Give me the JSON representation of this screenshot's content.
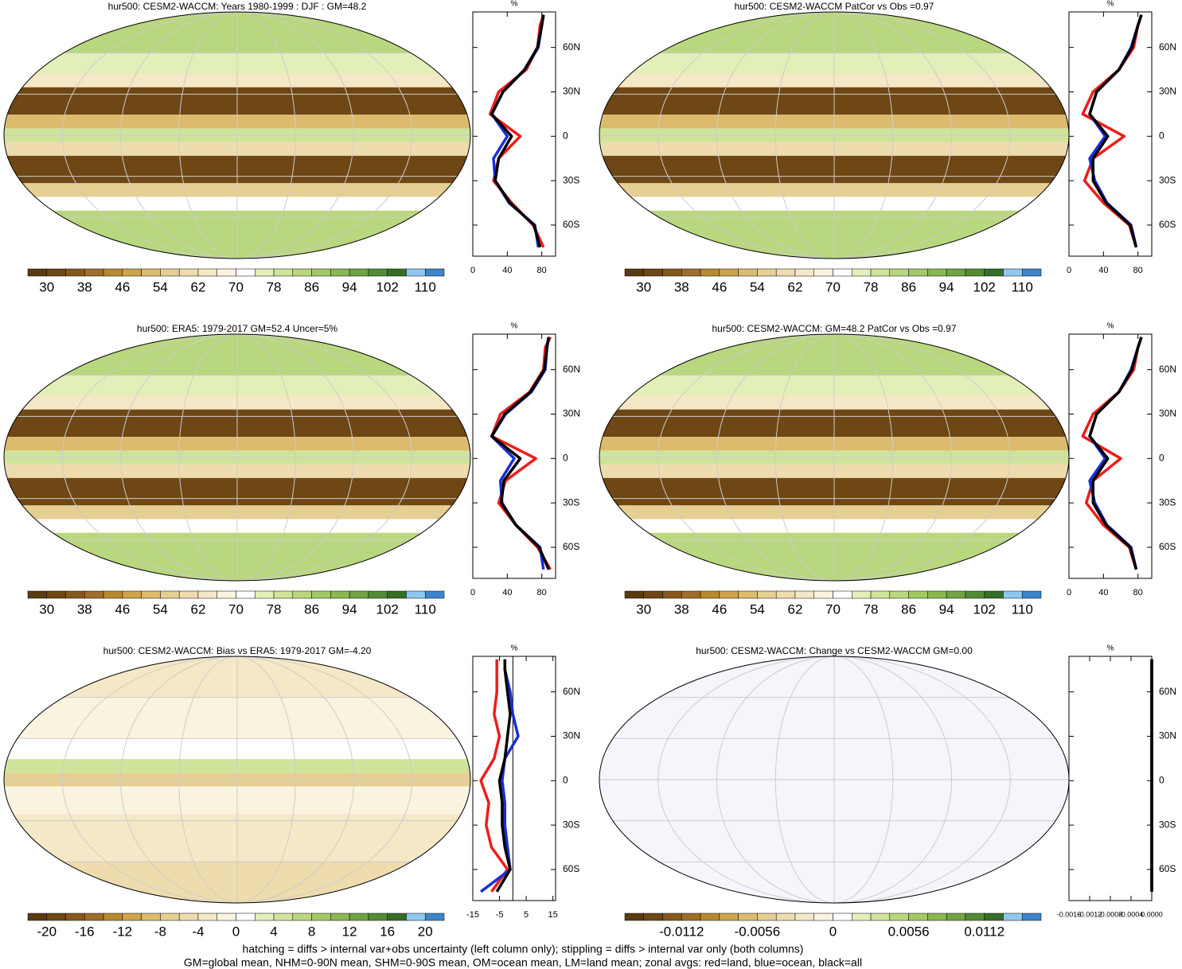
{
  "colorbar_colors": [
    "#5a3a10",
    "#6e4714",
    "#87581c",
    "#a06e2a",
    "#b88a2e",
    "#cfa44c",
    "#dcbb6e",
    "#e6cf92",
    "#eedcae",
    "#f4e8c6",
    "#faf3df",
    "#ffffff",
    "#e3efb8",
    "#cfe49a",
    "#b9d77e",
    "#a2c965",
    "#89b850",
    "#6ea442",
    "#528c34",
    "#356e26",
    "#8ec8ef",
    "#3b85cc"
  ],
  "footnote": [
    "hatching = diffs > internal var+obs uncertainty (left column only); stippling = diffs > internal var only (both columns)",
    "GM=global mean, NHM=0-90N mean, SHM=0-90S mean, OM=ocean mean, LM=land mean; zonal avgs: red=land, blue=ocean, black=all"
  ],
  "chart_data": [
    {
      "type": "map",
      "title": "hur500: CESM2-WACCM: Years 1980-1999 : DJF : GM=48.2",
      "colorbar": {
        "ticks": [
          30,
          38,
          46,
          54,
          62,
          70,
          78,
          86,
          94,
          102,
          110
        ]
      },
      "zonal": {
        "type": "line",
        "x_label": "%",
        "xlim": [
          0,
          96
        ],
        "xticks": [
          0,
          40,
          80
        ],
        "ylim": [
          -81,
          84
        ],
        "yticks": [
          {
            "value": 60,
            "label": "60N"
          },
          {
            "value": 30,
            "label": "30N"
          },
          0,
          {
            "value": -30,
            "label": "30S"
          },
          {
            "value": -60,
            "label": "60S"
          }
        ],
        "lat": [
          82,
          75,
          60,
          45,
          30,
          15,
          0,
          -15,
          -30,
          -45,
          -60,
          -75
        ],
        "series": [
          {
            "color": "#ee1c1c",
            "values": [
              82,
              78,
              75,
              62,
              30,
              20,
              55,
              30,
              24,
              45,
              70,
              82
            ]
          },
          {
            "color": "#1a2ed8",
            "values": [
              82,
              80,
              76,
              60,
              35,
              22,
              40,
              24,
              26,
              42,
              72,
              76
            ]
          },
          {
            "color": "#000000",
            "values": [
              82,
              80,
              75,
              60,
              35,
              22,
              45,
              30,
              26,
              43,
              71,
              78
            ]
          }
        ]
      }
    },
    {
      "type": "map",
      "title": "hur500: CESM2-WACCM PatCor vs Obs =0.97",
      "colorbar": {
        "ticks": [
          30,
          38,
          46,
          54,
          62,
          70,
          78,
          86,
          94,
          102,
          110
        ]
      },
      "zonal": {
        "type": "line",
        "x_label": "%",
        "xlim": [
          0,
          96
        ],
        "xticks": [
          0,
          40,
          80
        ],
        "ylim": [
          -81,
          84
        ],
        "yticks": [
          {
            "value": 60,
            "label": "60N"
          },
          {
            "value": 30,
            "label": "30N"
          },
          0,
          {
            "value": -30,
            "label": "30S"
          },
          {
            "value": -60,
            "label": "60S"
          }
        ],
        "lat": [
          82,
          75,
          60,
          45,
          30,
          15,
          0,
          -15,
          -30,
          -45,
          -60,
          -75
        ],
        "series": [
          {
            "color": "#ee1c1c",
            "values": [
              84,
              80,
              75,
              58,
              28,
              16,
              64,
              28,
              18,
              40,
              70,
              78
            ]
          },
          {
            "color": "#1a2ed8",
            "values": [
              84,
              80,
              72,
              58,
              32,
              24,
              42,
              24,
              30,
              44,
              72,
              78
            ]
          },
          {
            "color": "#000000",
            "values": [
              84,
              80,
              73,
              58,
              32,
              24,
              45,
              28,
              28,
              43,
              71,
              78
            ]
          }
        ]
      }
    },
    {
      "type": "map",
      "title": "hur500: ERA5: 1979-2017 GM=52.4 Uncer=5%",
      "colorbar": {
        "ticks": [
          30,
          38,
          46,
          54,
          62,
          70,
          78,
          86,
          94,
          102,
          110
        ]
      },
      "zonal": {
        "type": "line",
        "x_label": "%",
        "xlim": [
          0,
          96
        ],
        "xticks": [
          0,
          40,
          80
        ],
        "ylim": [
          -81,
          84
        ],
        "yticks": [
          {
            "value": 60,
            "label": "60N"
          },
          {
            "value": 30,
            "label": "30N"
          },
          0,
          {
            "value": -30,
            "label": "30S"
          },
          {
            "value": -60,
            "label": "60S"
          }
        ],
        "lat": [
          82,
          75,
          60,
          45,
          30,
          15,
          0,
          -15,
          -30,
          -45,
          -60,
          -75
        ],
        "series": [
          {
            "color": "#ee1c1c",
            "values": [
              90,
              84,
              82,
              66,
              32,
              22,
              73,
              38,
              30,
              50,
              75,
              90
            ]
          },
          {
            "color": "#1a2ed8",
            "values": [
              88,
              86,
              84,
              68,
              38,
              22,
              48,
              32,
              34,
              50,
              78,
              82
            ]
          },
          {
            "color": "#000000",
            "values": [
              88,
              86,
              83,
              67,
              37,
              22,
              55,
              36,
              33,
              50,
              77,
              88
            ]
          }
        ]
      }
    },
    {
      "type": "map",
      "title": "hur500: CESM2-WACCM: GM=48.2 PatCor vs Obs =0.97",
      "colorbar": {
        "ticks": [
          30,
          38,
          46,
          54,
          62,
          70,
          78,
          86,
          94,
          102,
          110
        ]
      },
      "zonal": {
        "type": "line",
        "x_label": "%",
        "xlim": [
          0,
          96
        ],
        "xticks": [
          0,
          40,
          80
        ],
        "ylim": [
          -81,
          84
        ],
        "yticks": [
          {
            "value": 60,
            "label": "60N"
          },
          {
            "value": 30,
            "label": "30N"
          },
          0,
          {
            "value": -30,
            "label": "30S"
          },
          {
            "value": -60,
            "label": "60S"
          }
        ],
        "lat": [
          82,
          75,
          60,
          45,
          30,
          15,
          0,
          -15,
          -30,
          -45,
          -60,
          -75
        ],
        "series": [
          {
            "color": "#ee1c1c",
            "values": [
              84,
              80,
              75,
              58,
              28,
              16,
              60,
              28,
              20,
              40,
              70,
              78
            ]
          },
          {
            "color": "#1a2ed8",
            "values": [
              84,
              80,
              72,
              58,
              32,
              24,
              42,
              24,
              30,
              44,
              72,
              78
            ]
          },
          {
            "color": "#000000",
            "values": [
              84,
              80,
              73,
              58,
              32,
              24,
              45,
              28,
              28,
              43,
              71,
              78
            ]
          }
        ]
      }
    },
    {
      "type": "map",
      "title": "hur500: CESM2-WACCM: Bias vs ERA5: 1979-2017 GM=-4.20",
      "colorbar": {
        "ticks": [
          -20,
          -16,
          -12,
          -8,
          -4,
          0,
          4,
          8,
          12,
          16,
          20
        ]
      },
      "zonal": {
        "type": "line",
        "x_label": "%",
        "xlim": [
          -15,
          16
        ],
        "xticks": [
          -15,
          -5,
          5,
          15
        ],
        "ylim": [
          -81,
          84
        ],
        "yticks": [
          {
            "value": 60,
            "label": "60N"
          },
          {
            "value": 30,
            "label": "30N"
          },
          0,
          {
            "value": -30,
            "label": "30S"
          },
          {
            "value": -60,
            "label": "60S"
          }
        ],
        "lat": [
          82,
          75,
          60,
          45,
          30,
          15,
          0,
          -15,
          -30,
          -45,
          -60,
          -75
        ],
        "series": [
          {
            "color": "#ee1c1c",
            "values": [
              -6,
              -6,
              -6,
              -7,
              -5,
              -7,
              -12,
              -9,
              -10,
              -8,
              -2,
              -8
            ]
          },
          {
            "color": "#1a2ed8",
            "values": [
              -3,
              -3,
              -1,
              0,
              2,
              -3,
              -4,
              -3,
              -3,
              -2,
              -1,
              -12
            ]
          },
          {
            "color": "#000000",
            "values": [
              -3,
              -3,
              -2,
              -1,
              -2,
              -3,
              -5,
              -4,
              -4,
              -3,
              -1,
              -6
            ]
          }
        ]
      }
    },
    {
      "type": "map",
      "title": "hur500: CESM2-WACCM: Change vs CESM2-WACCM GM=0.00",
      "colorbar": {
        "ticks": [
          -0.0112,
          -0.0056,
          0,
          0.0056,
          0.0112
        ]
      },
      "zonal": {
        "type": "line",
        "x_label": "%",
        "xlim": [
          -0.0016,
          0
        ],
        "xticks": [
          -0.0016,
          -0.0012,
          -0.0008,
          -0.0004,
          {
            "value": 0,
            "label": "0.0000"
          }
        ],
        "ylim": [
          -81,
          84
        ],
        "yticks": [
          {
            "value": 60,
            "label": "60N"
          },
          {
            "value": 30,
            "label": "30N"
          },
          0,
          {
            "value": -30,
            "label": "30S"
          },
          {
            "value": -60,
            "label": "60S"
          }
        ],
        "lat": [
          82,
          75,
          60,
          45,
          30,
          15,
          0,
          -15,
          -30,
          -45,
          -60,
          -75
        ],
        "series": [
          {
            "color": "#ee1c1c",
            "values": [
              0,
              0,
              0,
              0,
              0,
              0,
              0,
              0,
              0,
              0,
              0,
              0
            ]
          },
          {
            "color": "#1a2ed8",
            "values": [
              0,
              0,
              0,
              0,
              0,
              0,
              0,
              0,
              0,
              0,
              0,
              0
            ]
          },
          {
            "color": "#000000",
            "values": [
              0,
              0,
              0,
              0,
              0,
              0,
              0,
              0,
              0,
              0,
              0,
              0
            ]
          }
        ]
      }
    }
  ]
}
